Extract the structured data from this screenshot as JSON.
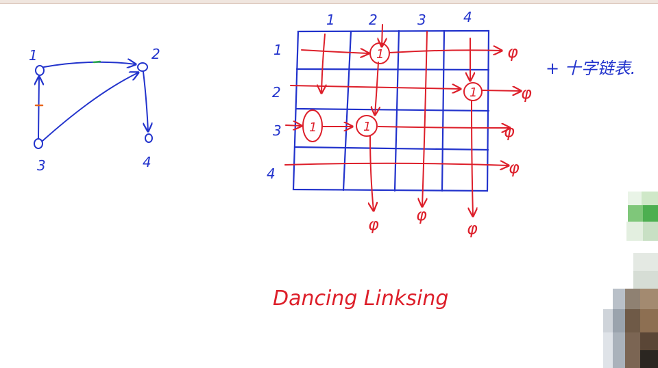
{
  "colors": {
    "ink_blue": "#2233cc",
    "ink_red": "#dd1f2a",
    "ink_orange": "#e8661c",
    "ink_green": "#2aa84a",
    "background": "#ffffff"
  },
  "graph": {
    "nodes": [
      {
        "id": "node-1",
        "label": "1"
      },
      {
        "id": "node-2",
        "label": "2"
      },
      {
        "id": "node-3",
        "label": "3"
      },
      {
        "id": "node-4",
        "label": "4"
      }
    ]
  },
  "matrix": {
    "column_labels": [
      "1",
      "2",
      "3",
      "4"
    ],
    "row_labels": [
      "1",
      "2",
      "3",
      "4"
    ],
    "cell_values": [
      "1",
      "1",
      "1",
      "1"
    ],
    "null_symbol": "φ"
  },
  "note": "+ 十字链表.",
  "title": "Dancing Linksing"
}
